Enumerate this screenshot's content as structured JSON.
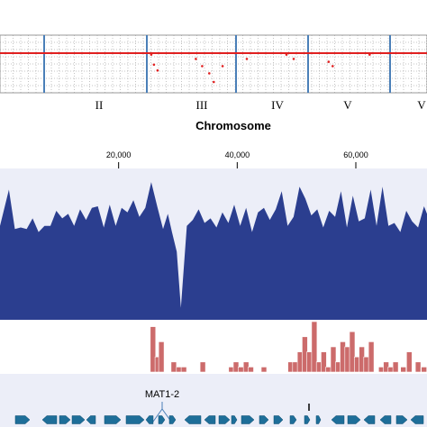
{
  "colors": {
    "accent_line": "#e02020",
    "chromosome_boundary": "#4a7fb8",
    "coverage_fill": "#2b3e8f",
    "coverage_bg": "#eceef8",
    "bar_fill": "#cc6b6b",
    "gene_fill": "#1e6e99",
    "gene_track_bg": "#eceef8"
  },
  "chart_data": [
    {
      "type": "scatter",
      "panel": "genome-wide",
      "xlabel": "Chromosome",
      "chromosome_labels": [
        "II",
        "III",
        "IV",
        "V",
        "V"
      ],
      "reference_line": 0,
      "points": [
        {
          "chromosome": "III",
          "offset": 0.05,
          "y": -0.1
        },
        {
          "chromosome": "III",
          "offset": 0.08,
          "y": -0.8
        },
        {
          "chromosome": "III",
          "offset": 0.12,
          "y": -1.2
        },
        {
          "chromosome": "III",
          "offset": 0.55,
          "y": -0.4
        },
        {
          "chromosome": "III",
          "offset": 0.62,
          "y": -0.9
        },
        {
          "chromosome": "III",
          "offset": 0.7,
          "y": -1.4
        },
        {
          "chromosome": "III",
          "offset": 0.75,
          "y": -2.0
        },
        {
          "chromosome": "III",
          "offset": 0.85,
          "y": -0.9
        },
        {
          "chromosome": "IV",
          "offset": 0.15,
          "y": -0.4
        },
        {
          "chromosome": "IV",
          "offset": 0.7,
          "y": -0.1
        },
        {
          "chromosome": "IV",
          "offset": 0.8,
          "y": -0.4
        },
        {
          "chromosome": "V",
          "offset": 0.25,
          "y": -0.6
        },
        {
          "chromosome": "V",
          "offset": 0.3,
          "y": -0.9
        },
        {
          "chromosome": "V",
          "offset": 0.75,
          "y": -0.1
        }
      ]
    },
    {
      "type": "area",
      "panel": "coverage",
      "x_tick_labels": [
        "20,000",
        "40,000",
        "60,000"
      ],
      "x_ticks": [
        20000,
        40000,
        60000
      ],
      "xlim": [
        0,
        72000
      ],
      "ylim": [
        0,
        100
      ],
      "x": [
        0,
        1500,
        2500,
        3500,
        4500,
        5500,
        6500,
        7500,
        8500,
        9500,
        10500,
        11500,
        12500,
        13500,
        14500,
        15500,
        16500,
        17500,
        18500,
        19500,
        20500,
        21500,
        22500,
        23500,
        24500,
        25500,
        26500,
        27500,
        28300,
        29000,
        29800,
        30500,
        31500,
        32500,
        33500,
        34500,
        35500,
        36500,
        37500,
        38500,
        39500,
        40500,
        41500,
        42500,
        43500,
        44500,
        45500,
        46500,
        47500,
        48500,
        49500,
        50500,
        51500,
        52500,
        53500,
        54500,
        55500,
        56500,
        57500,
        58500,
        59500,
        60500,
        61500,
        62500,
        63500,
        64500,
        65500,
        66500,
        67500,
        68500,
        69500,
        70500,
        71500,
        72000
      ],
      "values": [
        62,
        86,
        60,
        61,
        60,
        67,
        58,
        62,
        62,
        72,
        67,
        70,
        62,
        73,
        66,
        74,
        75,
        61,
        76,
        62,
        74,
        71,
        79,
        68,
        74,
        91,
        75,
        60,
        70,
        58,
        45,
        8,
        62,
        66,
        73,
        64,
        67,
        61,
        71,
        64,
        76,
        62,
        74,
        58,
        71,
        74,
        66,
        73,
        85,
        62,
        68,
        88,
        80,
        69,
        73,
        61,
        72,
        68,
        85,
        61,
        82,
        65,
        67,
        86,
        62,
        88,
        62,
        64,
        58,
        72,
        65,
        61,
        75,
        70
      ]
    },
    {
      "type": "bar",
      "panel": "histogram",
      "xlim": [
        0,
        72000
      ],
      "ylim": [
        0,
        10
      ],
      "x": [
        25800,
        26600,
        27200,
        29300,
        30200,
        31000,
        34200,
        39000,
        39800,
        40600,
        41500,
        42300,
        44500,
        49000,
        49800,
        50600,
        51400,
        52200,
        53000,
        53800,
        54600,
        55400,
        56200,
        57000,
        57800,
        58600,
        59400,
        60200,
        61000,
        61800,
        62600,
        64300,
        65100,
        65900,
        66700,
        68000,
        69000,
        70500,
        71500
      ],
      "values": [
        9,
        3,
        6,
        2,
        1,
        1,
        2,
        1,
        2,
        1,
        2,
        1,
        1,
        2,
        2,
        4,
        7,
        4,
        10,
        2,
        4,
        1,
        5,
        2,
        6,
        5,
        8,
        3,
        5,
        3,
        6,
        1,
        2,
        1,
        2,
        1,
        4,
        2,
        1
      ]
    }
  ],
  "gene_track": {
    "label": "MAT1-2"
  }
}
